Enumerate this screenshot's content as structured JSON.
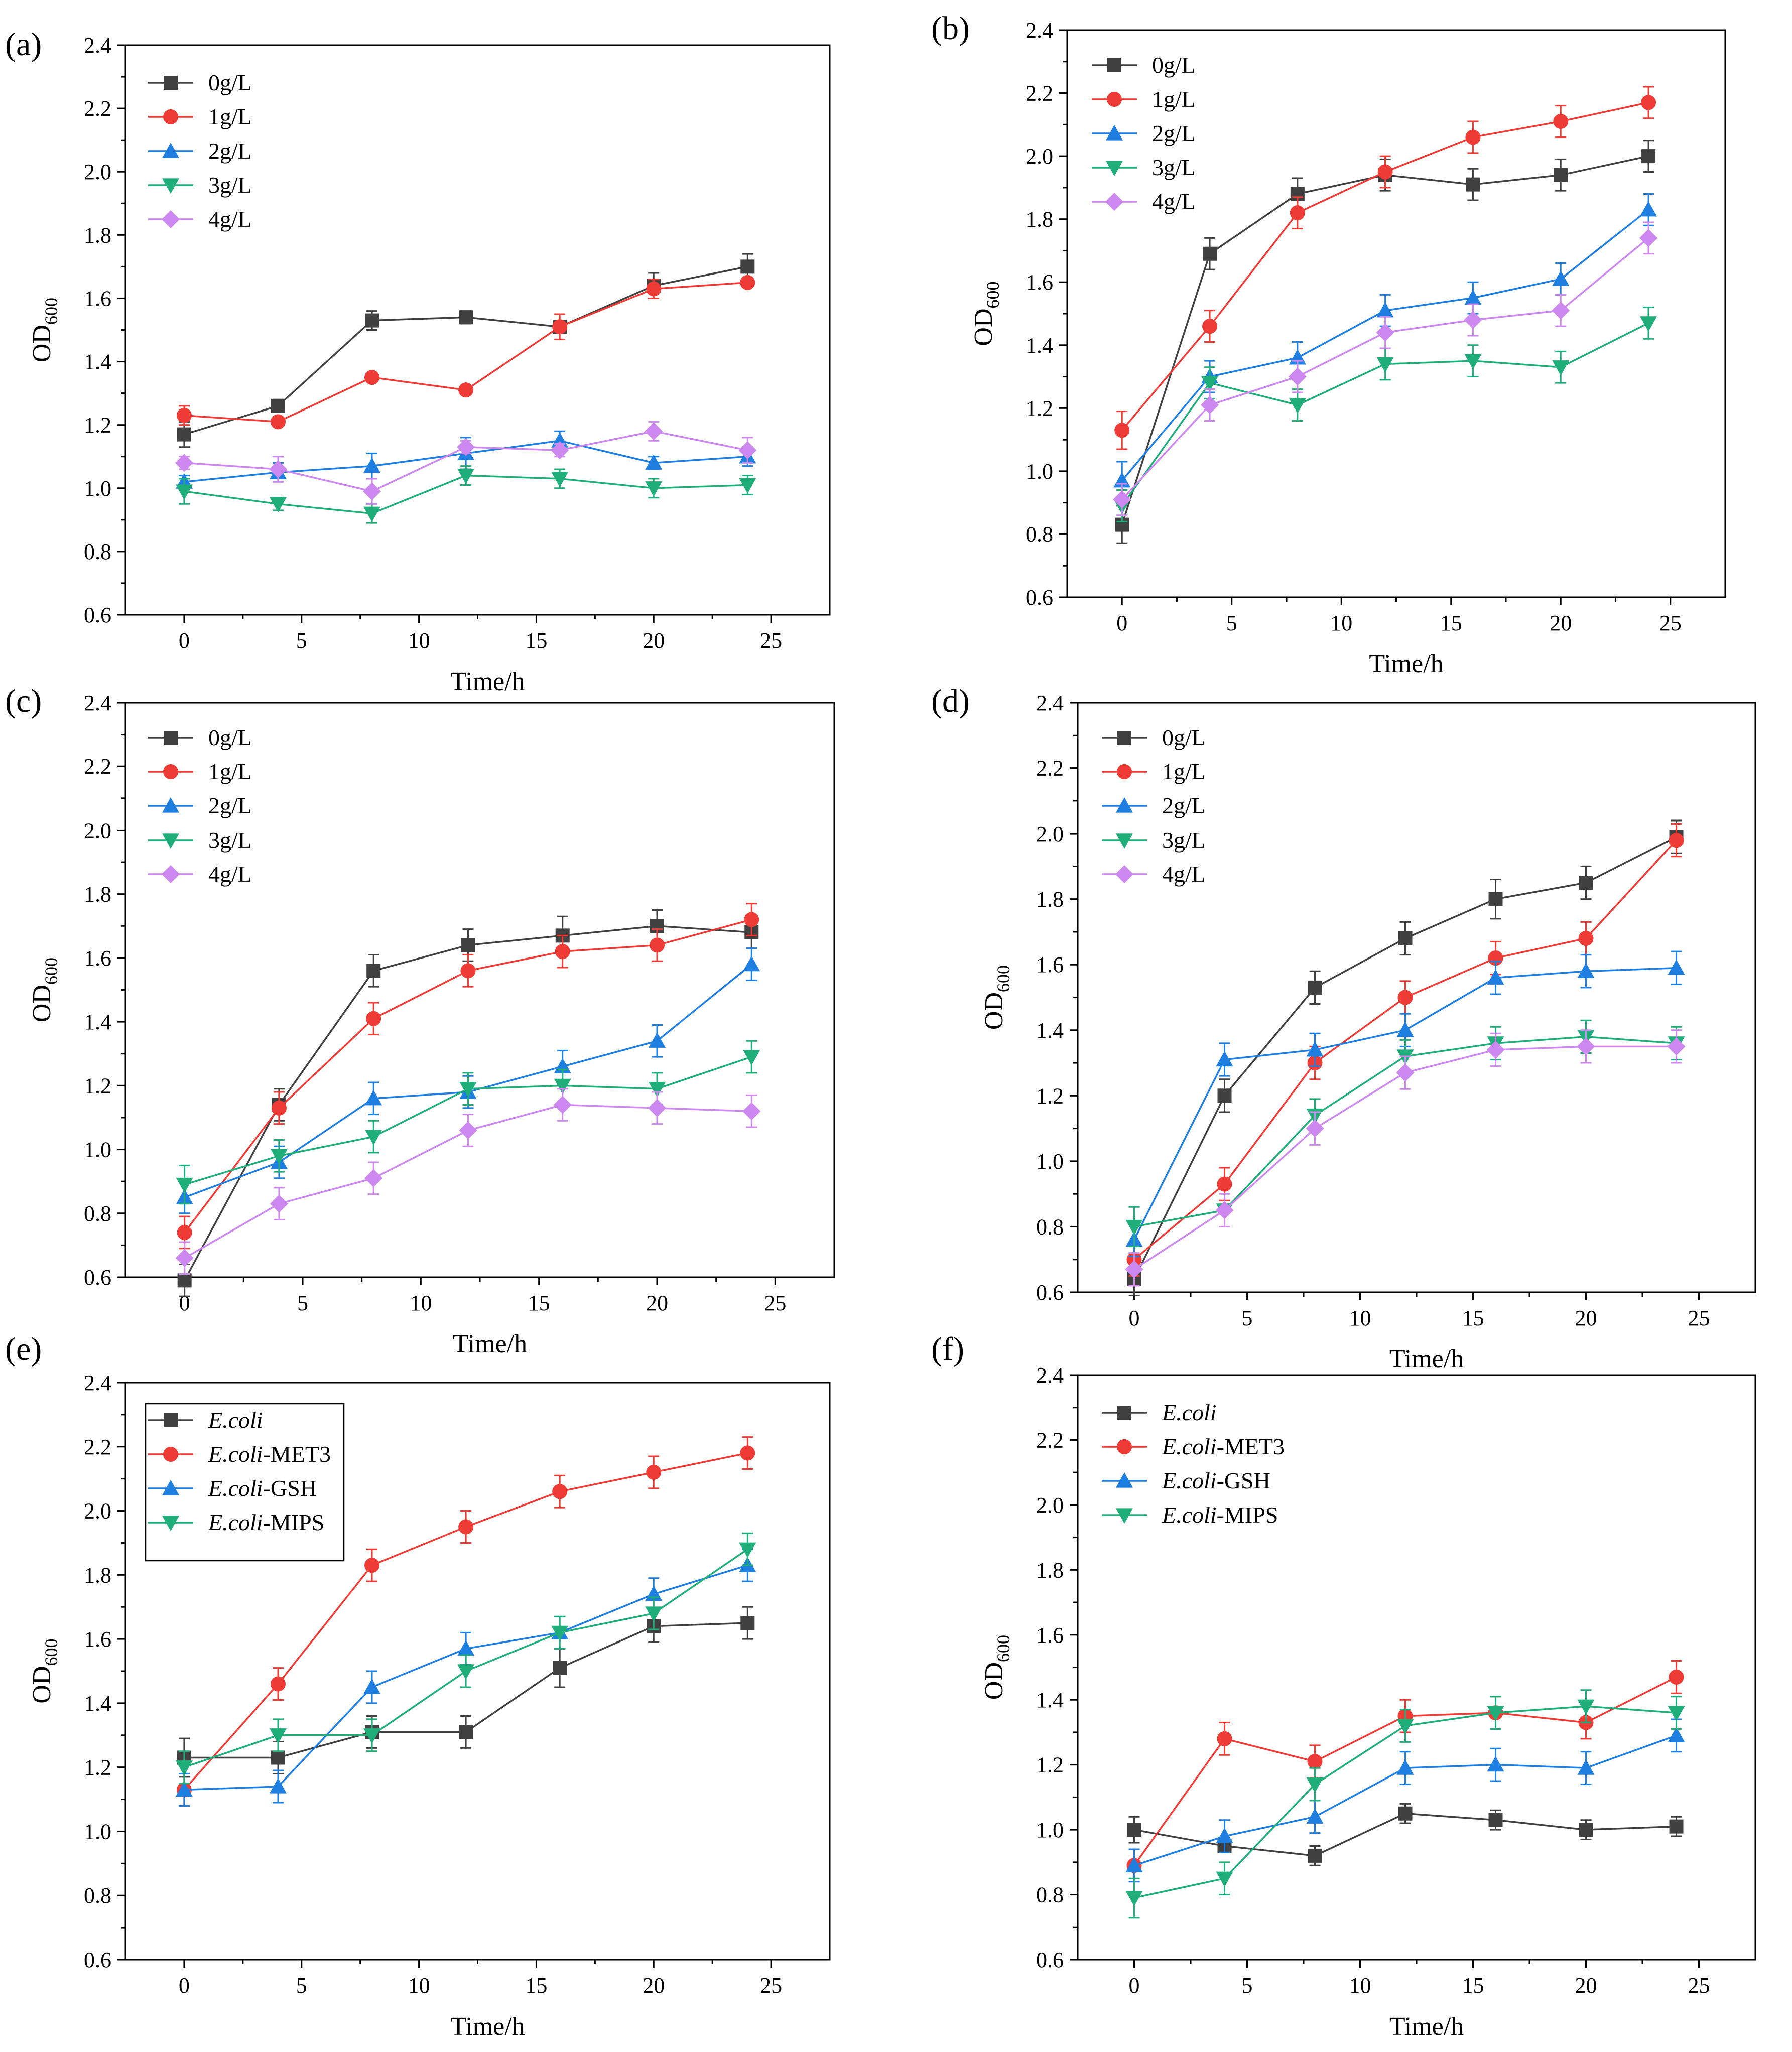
{
  "figure": {
    "xlabel": "Time/h",
    "ylabel_main": "OD",
    "ylabel_sub": "600"
  },
  "chart_data": [
    {
      "panel": "(a)",
      "type": "line",
      "xlabel": "Time/h",
      "ylabel": "OD600",
      "xlim": [
        -2.5,
        27.5
      ],
      "ylim": [
        0.6,
        2.4
      ],
      "xticks": [
        "0",
        "5",
        "10",
        "15",
        "20",
        "25"
      ],
      "yticks": [
        "0.6",
        "0.8",
        "1.0",
        "1.2",
        "1.4",
        "1.6",
        "1.8",
        "2.0",
        "2.2",
        "2.4"
      ],
      "x": [
        0,
        4,
        8,
        12,
        16,
        20,
        24
      ],
      "legend_box": false,
      "series": [
        {
          "name": "0g/L",
          "color": "#404040",
          "marker": "square",
          "values": [
            1.17,
            1.26,
            1.53,
            1.54,
            1.51,
            1.64,
            1.7
          ],
          "errors": [
            0.04,
            0.02,
            0.03,
            0.02,
            0.02,
            0.04,
            0.04
          ]
        },
        {
          "name": "1g/L",
          "color": "#ee3b35",
          "marker": "circle",
          "values": [
            1.23,
            1.21,
            1.35,
            1.31,
            1.51,
            1.63,
            1.65
          ],
          "errors": [
            0.03,
            0.01,
            0.01,
            0.01,
            0.04,
            0.03,
            0.01
          ]
        },
        {
          "name": "2g/L",
          "color": "#1e7fe0",
          "marker": "triangle-up",
          "values": [
            1.02,
            1.05,
            1.07,
            1.11,
            1.15,
            1.08,
            1.1
          ],
          "errors": [
            0.02,
            0.03,
            0.04,
            0.05,
            0.03,
            0.02,
            0.03
          ]
        },
        {
          "name": "3g/L",
          "color": "#1fae7a",
          "marker": "triangle-down",
          "values": [
            0.99,
            0.95,
            0.92,
            1.04,
            1.03,
            1.0,
            1.01
          ],
          "errors": [
            0.04,
            0.02,
            0.03,
            0.03,
            0.03,
            0.03,
            0.03
          ]
        },
        {
          "name": "4g/L",
          "color": "#cc88ee",
          "marker": "diamond",
          "values": [
            1.08,
            1.06,
            0.99,
            1.13,
            1.12,
            1.18,
            1.12
          ],
          "errors": [
            0.02,
            0.04,
            0.04,
            0.02,
            0.02,
            0.03,
            0.04
          ]
        }
      ]
    },
    {
      "panel": "(b)",
      "type": "line",
      "xlabel": "Time/h",
      "ylabel": "OD600",
      "xlim": [
        -2.5,
        27.5
      ],
      "ylim": [
        0.6,
        2.4
      ],
      "xticks": [
        "0",
        "5",
        "10",
        "15",
        "20",
        "25"
      ],
      "yticks": [
        "0.6",
        "0.8",
        "1.0",
        "1.2",
        "1.4",
        "1.6",
        "1.8",
        "2.0",
        "2.2",
        "2.4"
      ],
      "x": [
        0,
        4,
        8,
        12,
        16,
        20,
        24
      ],
      "legend_box": false,
      "series": [
        {
          "name": "0g/L",
          "color": "#404040",
          "marker": "square",
          "values": [
            0.83,
            1.69,
            1.88,
            1.94,
            1.91,
            1.94,
            2.0
          ],
          "errors": [
            0.06,
            0.05,
            0.05,
            0.05,
            0.05,
            0.05,
            0.05
          ]
        },
        {
          "name": "1g/L",
          "color": "#ee3b35",
          "marker": "circle",
          "values": [
            1.13,
            1.46,
            1.82,
            1.95,
            2.06,
            2.11,
            2.17
          ],
          "errors": [
            0.06,
            0.05,
            0.05,
            0.05,
            0.05,
            0.05,
            0.05
          ]
        },
        {
          "name": "2g/L",
          "color": "#1e7fe0",
          "marker": "triangle-up",
          "values": [
            0.97,
            1.3,
            1.36,
            1.51,
            1.55,
            1.61,
            1.83
          ],
          "errors": [
            0.06,
            0.05,
            0.05,
            0.05,
            0.05,
            0.05,
            0.05
          ]
        },
        {
          "name": "3g/L",
          "color": "#1fae7a",
          "marker": "triangle-down",
          "values": [
            0.89,
            1.28,
            1.21,
            1.34,
            1.35,
            1.33,
            1.47
          ],
          "errors": [
            0.05,
            0.05,
            0.05,
            0.05,
            0.05,
            0.05,
            0.05
          ]
        },
        {
          "name": "4g/L",
          "color": "#cc88ee",
          "marker": "diamond",
          "values": [
            0.91,
            1.21,
            1.3,
            1.44,
            1.48,
            1.51,
            1.74
          ],
          "errors": [
            0.05,
            0.05,
            0.05,
            0.05,
            0.05,
            0.05,
            0.05
          ]
        }
      ]
    },
    {
      "panel": "(c)",
      "type": "line",
      "xlabel": "Time/h",
      "ylabel": "OD600",
      "xlim": [
        -2.5,
        27.5
      ],
      "ylim": [
        0.6,
        2.4
      ],
      "xticks": [
        "0",
        "5",
        "10",
        "15",
        "20",
        "25"
      ],
      "yticks": [
        "0.6",
        "0.8",
        "1.0",
        "1.2",
        "1.4",
        "1.6",
        "1.8",
        "2.0",
        "2.2",
        "2.4"
      ],
      "x": [
        0,
        4,
        8,
        12,
        16,
        20,
        24
      ],
      "legend_box": false,
      "series": [
        {
          "name": "0g/L",
          "color": "#404040",
          "marker": "square",
          "values": [
            0.59,
            1.14,
            1.56,
            1.64,
            1.67,
            1.7,
            1.68
          ],
          "errors": [
            0.05,
            0.05,
            0.05,
            0.05,
            0.06,
            0.05,
            0.05
          ]
        },
        {
          "name": "1g/L",
          "color": "#ee3b35",
          "marker": "circle",
          "values": [
            0.74,
            1.13,
            1.41,
            1.56,
            1.62,
            1.64,
            1.72
          ],
          "errors": [
            0.05,
            0.05,
            0.05,
            0.05,
            0.05,
            0.05,
            0.05
          ]
        },
        {
          "name": "2g/L",
          "color": "#1e7fe0",
          "marker": "triangle-up",
          "values": [
            0.85,
            0.96,
            1.16,
            1.18,
            1.26,
            1.34,
            1.58
          ],
          "errors": [
            0.05,
            0.05,
            0.05,
            0.05,
            0.05,
            0.05,
            0.05
          ]
        },
        {
          "name": "3g/L",
          "color": "#1fae7a",
          "marker": "triangle-down",
          "values": [
            0.89,
            0.98,
            1.04,
            1.19,
            1.2,
            1.19,
            1.29
          ],
          "errors": [
            0.06,
            0.05,
            0.05,
            0.05,
            0.05,
            0.05,
            0.05
          ]
        },
        {
          "name": "4g/L",
          "color": "#cc88ee",
          "marker": "diamond",
          "values": [
            0.66,
            0.83,
            0.91,
            1.06,
            1.14,
            1.13,
            1.12
          ],
          "errors": [
            0.05,
            0.05,
            0.05,
            0.05,
            0.05,
            0.05,
            0.05
          ]
        }
      ]
    },
    {
      "panel": "(d)",
      "type": "line",
      "xlabel": "Time/h",
      "ylabel": "OD600",
      "xlim": [
        -2.5,
        27.5
      ],
      "ylim": [
        0.6,
        2.4
      ],
      "xticks": [
        "0",
        "5",
        "10",
        "15",
        "20",
        "25"
      ],
      "yticks": [
        "0.6",
        "0.8",
        "1.0",
        "1.2",
        "1.4",
        "1.6",
        "1.8",
        "2.0",
        "2.2",
        "2.4"
      ],
      "x": [
        0,
        4,
        8,
        12,
        16,
        20,
        24
      ],
      "legend_box": false,
      "series": [
        {
          "name": "0g/L",
          "color": "#404040",
          "marker": "square",
          "values": [
            0.64,
            1.2,
            1.53,
            1.68,
            1.8,
            1.85,
            1.99
          ],
          "errors": [
            0.05,
            0.05,
            0.05,
            0.05,
            0.06,
            0.05,
            0.05
          ]
        },
        {
          "name": "1g/L",
          "color": "#ee3b35",
          "marker": "circle",
          "values": [
            0.7,
            0.93,
            1.3,
            1.5,
            1.62,
            1.68,
            1.98
          ],
          "errors": [
            0.05,
            0.05,
            0.05,
            0.05,
            0.05,
            0.05,
            0.05
          ]
        },
        {
          "name": "2g/L",
          "color": "#1e7fe0",
          "marker": "triangle-up",
          "values": [
            0.76,
            1.31,
            1.34,
            1.4,
            1.56,
            1.58,
            1.59
          ],
          "errors": [
            0.05,
            0.05,
            0.05,
            0.05,
            0.05,
            0.05,
            0.05
          ]
        },
        {
          "name": "3g/L",
          "color": "#1fae7a",
          "marker": "triangle-down",
          "values": [
            0.8,
            0.85,
            1.14,
            1.32,
            1.36,
            1.38,
            1.36
          ],
          "errors": [
            0.06,
            0.05,
            0.05,
            0.05,
            0.05,
            0.05,
            0.05
          ]
        },
        {
          "name": "4g/L",
          "color": "#cc88ee",
          "marker": "diamond",
          "values": [
            0.67,
            0.85,
            1.1,
            1.27,
            1.34,
            1.35,
            1.35
          ],
          "errors": [
            0.05,
            0.05,
            0.05,
            0.05,
            0.05,
            0.05,
            0.05
          ]
        }
      ]
    },
    {
      "panel": "(e)",
      "type": "line",
      "xlabel": "Time/h",
      "ylabel": "OD600",
      "xlim": [
        -2.5,
        27.5
      ],
      "ylim": [
        0.6,
        2.4
      ],
      "xticks": [
        "0",
        "5",
        "10",
        "15",
        "20",
        "25"
      ],
      "yticks": [
        "0.6",
        "0.8",
        "1.0",
        "1.2",
        "1.4",
        "1.6",
        "1.8",
        "2.0",
        "2.2",
        "2.4"
      ],
      "x": [
        0,
        4,
        8,
        12,
        16,
        20,
        24
      ],
      "legend_box": true,
      "series": [
        {
          "name_italic": "E.coli",
          "name_suffix": "",
          "color": "#404040",
          "marker": "square",
          "values": [
            1.23,
            1.23,
            1.31,
            1.31,
            1.51,
            1.64,
            1.65
          ],
          "errors": [
            0.06,
            0.05,
            0.05,
            0.05,
            0.06,
            0.05,
            0.05
          ]
        },
        {
          "name_italic": "E.coli",
          "name_suffix": "-MET3",
          "color": "#ee3b35",
          "marker": "circle",
          "values": [
            1.13,
            1.46,
            1.83,
            1.95,
            2.06,
            2.12,
            2.18
          ],
          "errors": [
            0.05,
            0.05,
            0.05,
            0.05,
            0.05,
            0.05,
            0.05
          ]
        },
        {
          "name_italic": "E.coli",
          "name_suffix": "-GSH",
          "color": "#1e7fe0",
          "marker": "triangle-up",
          "values": [
            1.13,
            1.14,
            1.45,
            1.57,
            1.62,
            1.74,
            1.83
          ],
          "errors": [
            0.05,
            0.05,
            0.05,
            0.05,
            0.05,
            0.05,
            0.05
          ]
        },
        {
          "name_italic": "E.coli",
          "name_suffix": "-MIPS",
          "color": "#1fae7a",
          "marker": "triangle-down",
          "values": [
            1.2,
            1.3,
            1.3,
            1.5,
            1.62,
            1.68,
            1.88
          ],
          "errors": [
            0.05,
            0.05,
            0.05,
            0.05,
            0.05,
            0.05,
            0.05
          ]
        }
      ]
    },
    {
      "panel": "(f)",
      "type": "line",
      "xlabel": "Time/h",
      "ylabel": "OD600",
      "xlim": [
        -2.5,
        27.5
      ],
      "ylim": [
        0.6,
        2.4
      ],
      "xticks": [
        "0",
        "5",
        "10",
        "15",
        "20",
        "25"
      ],
      "yticks": [
        "0.6",
        "0.8",
        "1.0",
        "1.2",
        "1.4",
        "1.6",
        "1.8",
        "2.0",
        "2.2",
        "2.4"
      ],
      "x": [
        0,
        4,
        8,
        12,
        16,
        20,
        24
      ],
      "legend_box": false,
      "series": [
        {
          "name_italic": "E.coli",
          "name_suffix": "",
          "color": "#404040",
          "marker": "square",
          "values": [
            1.0,
            0.95,
            0.92,
            1.05,
            1.03,
            1.0,
            1.01
          ],
          "errors": [
            0.04,
            0.02,
            0.03,
            0.03,
            0.03,
            0.03,
            0.03
          ]
        },
        {
          "name_italic": "E.coli",
          "name_suffix": "-MET3",
          "color": "#ee3b35",
          "marker": "circle",
          "values": [
            0.89,
            1.28,
            1.21,
            1.35,
            1.36,
            1.33,
            1.47
          ],
          "errors": [
            0.05,
            0.05,
            0.05,
            0.05,
            0.05,
            0.05,
            0.05
          ]
        },
        {
          "name_italic": "E.coli",
          "name_suffix": "-GSH",
          "color": "#1e7fe0",
          "marker": "triangle-up",
          "values": [
            0.89,
            0.98,
            1.04,
            1.19,
            1.2,
            1.19,
            1.29
          ],
          "errors": [
            0.05,
            0.05,
            0.05,
            0.05,
            0.05,
            0.05,
            0.05
          ]
        },
        {
          "name_italic": "E.coli",
          "name_suffix": "-MIPS",
          "color": "#1fae7a",
          "marker": "triangle-down",
          "values": [
            0.79,
            0.85,
            1.14,
            1.32,
            1.36,
            1.38,
            1.36
          ],
          "errors": [
            0.06,
            0.05,
            0.05,
            0.05,
            0.05,
            0.05,
            0.05
          ]
        }
      ]
    }
  ]
}
